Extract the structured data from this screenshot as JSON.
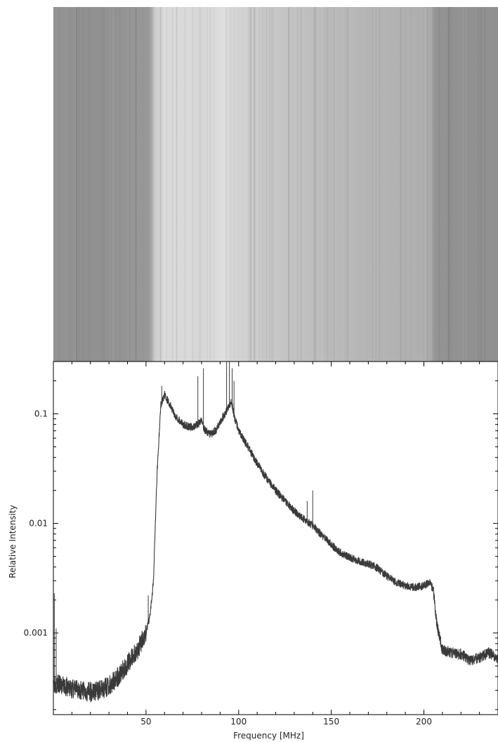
{
  "chart_data": [
    {
      "type": "heatmap",
      "description_axis": "frequency",
      "x_range_mhz": [
        0,
        240
      ],
      "band_profile": [
        {
          "x": 0,
          "v": 0.57
        },
        {
          "x": 30,
          "v": 0.57
        },
        {
          "x": 52,
          "v": 0.6
        },
        {
          "x": 55,
          "v": 0.8
        },
        {
          "x": 60,
          "v": 0.86
        },
        {
          "x": 80,
          "v": 0.84
        },
        {
          "x": 92,
          "v": 0.87
        },
        {
          "x": 96,
          "v": 0.84
        },
        {
          "x": 110,
          "v": 0.79
        },
        {
          "x": 150,
          "v": 0.73
        },
        {
          "x": 180,
          "v": 0.7
        },
        {
          "x": 203,
          "v": 0.68
        },
        {
          "x": 206,
          "v": 0.58
        },
        {
          "x": 240,
          "v": 0.56
        }
      ]
    },
    {
      "type": "line",
      "xlabel": "Frequency [MHz]",
      "ylabel": "Relative Intensity",
      "yscale": "log",
      "xlim": [
        0,
        240
      ],
      "ylim": [
        0.00018,
        0.3
      ],
      "x_ticks": [
        {
          "value": 50,
          "label": "50"
        },
        {
          "value": 100,
          "label": "100"
        },
        {
          "value": 150,
          "label": "150"
        },
        {
          "value": 200,
          "label": "200"
        }
      ],
      "y_ticks": [
        {
          "value": 0.001,
          "label": "0.001"
        },
        {
          "value": 0.01,
          "label": "0.01"
        },
        {
          "value": 0.1,
          "label": "0.1"
        }
      ],
      "series": [
        {
          "color": "#3a3a3a",
          "x": [
            0,
            5,
            10,
            15,
            20,
            25,
            30,
            35,
            40,
            45,
            50,
            52,
            54,
            56,
            58,
            60,
            63,
            66,
            70,
            75,
            78,
            80,
            82,
            85,
            88,
            91,
            94,
            96,
            98,
            100,
            105,
            110,
            115,
            120,
            125,
            130,
            135,
            140,
            145,
            150,
            155,
            160,
            165,
            170,
            175,
            180,
            185,
            190,
            195,
            200,
            203,
            205,
            207,
            210,
            215,
            220,
            225,
            230,
            235,
            240
          ],
          "y": [
            0.00035,
            0.00033,
            0.00031,
            0.0003,
            0.00029,
            0.0003,
            0.00033,
            0.0004,
            0.00052,
            0.00068,
            0.001,
            0.0014,
            0.003,
            0.03,
            0.12,
            0.15,
            0.12,
            0.095,
            0.08,
            0.075,
            0.08,
            0.085,
            0.07,
            0.065,
            0.072,
            0.09,
            0.11,
            0.13,
            0.09,
            0.07,
            0.05,
            0.035,
            0.026,
            0.02,
            0.016,
            0.013,
            0.011,
            0.0095,
            0.0078,
            0.0064,
            0.0054,
            0.0049,
            0.0045,
            0.0043,
            0.0039,
            0.0033,
            0.0029,
            0.0027,
            0.0026,
            0.0027,
            0.0029,
            0.0025,
            0.0012,
            0.0007,
            0.00066,
            0.00064,
            0.00056,
            0.0006,
            0.00066,
            0.00058
          ]
        }
      ],
      "spikes": [
        {
          "x": 0.5,
          "y": 0.0023
        },
        {
          "x": 1.5,
          "y": 0.0011
        },
        {
          "x": 51.2,
          "y": 0.0022
        },
        {
          "x": 58.5,
          "y": 0.18
        },
        {
          "x": 78,
          "y": 0.22
        },
        {
          "x": 81,
          "y": 0.26
        },
        {
          "x": 93.5,
          "y": 0.3
        },
        {
          "x": 95,
          "y": 0.3
        },
        {
          "x": 96.5,
          "y": 0.26
        },
        {
          "x": 97.5,
          "y": 0.2
        },
        {
          "x": 137,
          "y": 0.016
        },
        {
          "x": 140,
          "y": 0.02
        }
      ]
    }
  ]
}
